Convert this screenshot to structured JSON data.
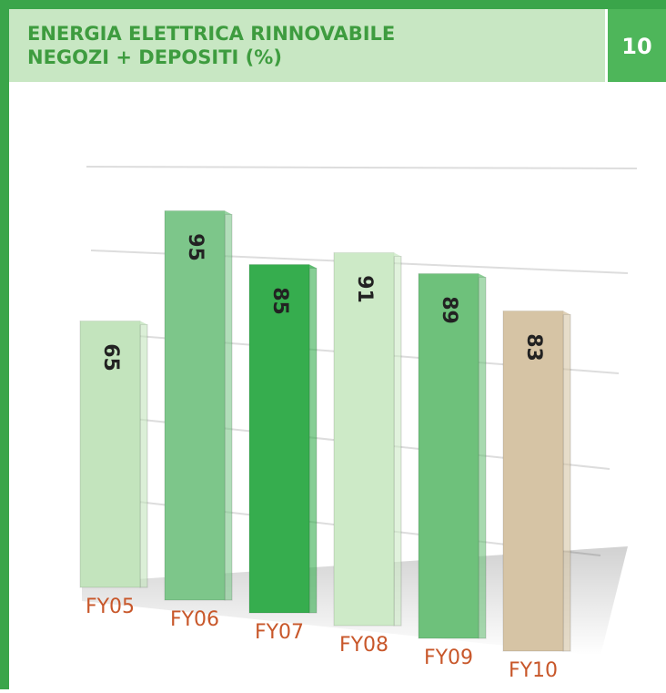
{
  "chart_data": {
    "type": "bar",
    "title": [
      "ENERGIA ELETTRICA RINNOVABILE",
      "NEGOZI + DEPOSITI (%)"
    ],
    "badge": "10",
    "categories": [
      "FY05",
      "FY06",
      "FY07",
      "FY08",
      "FY09",
      "FY10"
    ],
    "values": [
      65,
      95,
      85,
      91,
      89,
      83
    ],
    "colors": [
      "#c3e4bd",
      "#7dc68a",
      "#36ad4e",
      "#cdeac7",
      "#6ec17b",
      "#d6c4a5"
    ],
    "ylim": [
      0,
      100
    ]
  }
}
